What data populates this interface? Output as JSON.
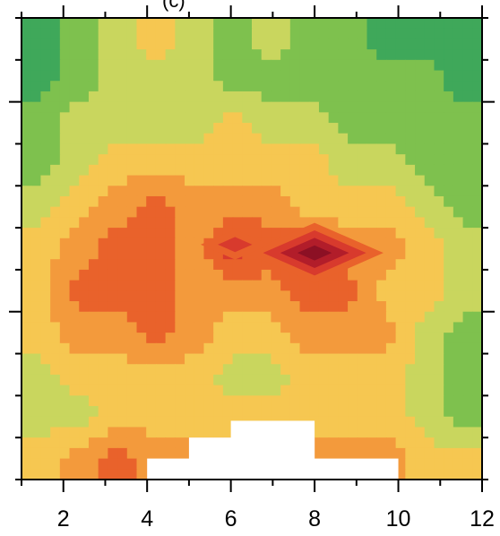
{
  "chart_data": {
    "type": "heatmap",
    "title_fragment": "(c)",
    "xlabel": "",
    "ylabel": "",
    "x_ticks": [
      "2",
      "4",
      "6",
      "8",
      "10",
      "12"
    ],
    "x_tick_values": [
      2,
      4,
      6,
      8,
      10,
      12
    ],
    "xlim": [
      1,
      12
    ],
    "y_tick_labels": [],
    "grid": false,
    "legend": "none",
    "levels": [
      {
        "level": 0,
        "color": "#3fa85a"
      },
      {
        "level": 1,
        "color": "#7ec14e"
      },
      {
        "level": 2,
        "color": "#c9d65e"
      },
      {
        "level": 3,
        "color": "#f6c751"
      },
      {
        "level": 4,
        "color": "#f39a3c"
      },
      {
        "level": 5,
        "color": "#e9622b"
      },
      {
        "level": 6,
        "color": "#d83a2d"
      },
      {
        "level": 7,
        "color": "#b21d2a"
      },
      {
        "level": 8,
        "color": "#8c1024"
      }
    ],
    "masked_color": "#ffffff",
    "grid_rows": 11,
    "grid_cols": 12,
    "z": [
      [
        0,
        1,
        2,
        3,
        2,
        1,
        2,
        1,
        1,
        0,
        0,
        0
      ],
      [
        0,
        1,
        2,
        2,
        2,
        1,
        1,
        1,
        1,
        1,
        1,
        0
      ],
      [
        1,
        2,
        2,
        2,
        2,
        3,
        2,
        2,
        1,
        1,
        1,
        1
      ],
      [
        1,
        2,
        3,
        3,
        3,
        3,
        3,
        3,
        2,
        2,
        1,
        1
      ],
      [
        2,
        3,
        4,
        5,
        4,
        4,
        4,
        3,
        3,
        3,
        2,
        1
      ],
      [
        3,
        4,
        5,
        5,
        4,
        6,
        5,
        6,
        4,
        4,
        3,
        2
      ],
      [
        3,
        5,
        5,
        5,
        4,
        4,
        4,
        5,
        5,
        3,
        3,
        2
      ],
      [
        3,
        4,
        4,
        5,
        4,
        3,
        3,
        4,
        4,
        4,
        2,
        1
      ],
      [
        2,
        3,
        3,
        3,
        3,
        2,
        2,
        3,
        3,
        3,
        2,
        1
      ],
      [
        2,
        2,
        3,
        3,
        3,
        3,
        3,
        3,
        3,
        3,
        2,
        1
      ],
      [
        3,
        4,
        5,
        4,
        4,
        4,
        4,
        4,
        4,
        4,
        3,
        3
      ]
    ],
    "peaks": [
      {
        "x": 8.0,
        "y_row": 5.6,
        "level": 8
      },
      {
        "x": 6.1,
        "y_row": 5.4,
        "level": 6
      },
      {
        "x": 7.0,
        "y_row": 2.8,
        "level": 4
      }
    ],
    "masked_cells": [
      {
        "x0": 4,
        "x1": 10,
        "row0": 10.5,
        "row1": 11
      },
      {
        "x0": 5,
        "x1": 8,
        "row0": 10.0,
        "row1": 11
      },
      {
        "x0": 6,
        "x1": 8,
        "row0": 9.6,
        "row1": 11
      }
    ]
  }
}
